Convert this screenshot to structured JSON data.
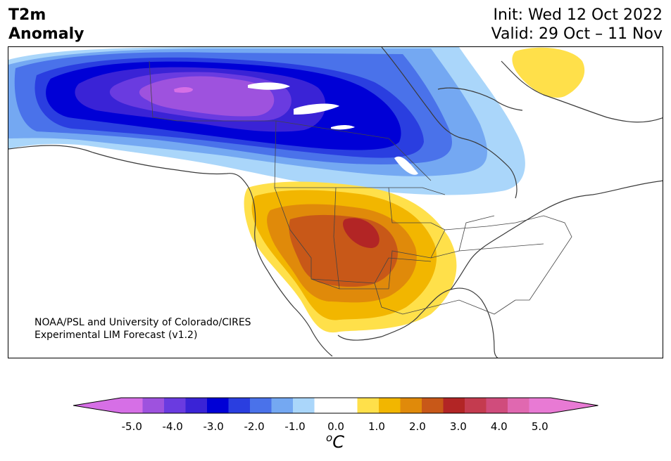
{
  "title": {
    "line1": "T2m",
    "line2": "Anomaly"
  },
  "dates": {
    "init": "Init: Wed 12 Oct 2022",
    "valid": "Valid: 29 Oct – 11 Nov"
  },
  "credit": {
    "line1": "NOAA/PSL and University of Colorado/CIRES",
    "line2": "Experimental LIM Forecast (v1.2)"
  },
  "colorbar": {
    "ticks": [
      "-5.0",
      "-4.0",
      "-3.0",
      "-2.0",
      "-1.0",
      "0.0",
      "1.0",
      "2.0",
      "3.0",
      "4.0",
      "5.0"
    ],
    "unit_prefix": "o",
    "unit_main": "C",
    "colors": [
      "#d66fe6",
      "#9e52de",
      "#6a3be0",
      "#3a23d6",
      "#0000d6",
      "#2a3ee0",
      "#4a72ea",
      "#74a8f2",
      "#aad6fa",
      "#ffffff",
      "#ffffff",
      "#ffe04a",
      "#f2b600",
      "#e08a0a",
      "#c85818",
      "#b22525",
      "#c43b4f",
      "#d04c7c",
      "#e068b0",
      "#e87ad4"
    ],
    "under_color": "#d66fe6",
    "over_color": "#e87ad4"
  }
}
